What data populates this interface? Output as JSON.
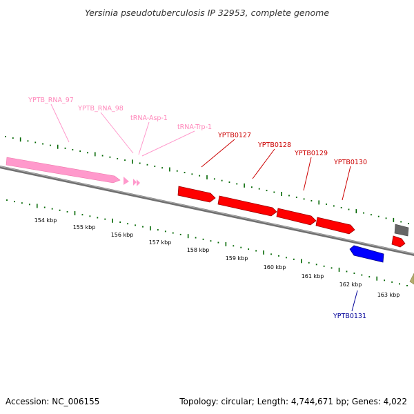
{
  "title": "Yersinia pseudotuberculosis IP 32953, complete genome",
  "footer": {
    "accession": "Accession: NC_006155",
    "summary": "Topology: circular; Length: 4,744,671 bp; Genes: 4,022"
  },
  "colors": {
    "rna": "#ff99cc",
    "rna_label": "#ff88bb",
    "gene_forward": "#ff0000",
    "gene_forward_label": "#cc0000",
    "gene_reverse": "#0000ff",
    "gene_reverse_label": "#000099",
    "backbone": "#808080",
    "tick": "#006600"
  },
  "kbp_ticks": [
    "154 kbp",
    "155 kbp",
    "156 kbp",
    "157 kbp",
    "158 kbp",
    "159 kbp",
    "160 kbp",
    "161 kbp",
    "162 kbp",
    "163 kbp"
  ],
  "features": {
    "rna": [
      {
        "name": "YPTB_RNA_97"
      },
      {
        "name": "YPTB_RNA_98"
      },
      {
        "name": "tRNA-Asp-1"
      },
      {
        "name": "tRNA-Trp-1"
      }
    ],
    "genes_forward": [
      {
        "name": "YPTB0127"
      },
      {
        "name": "YPTB0128"
      },
      {
        "name": "YPTB0129"
      },
      {
        "name": "YPTB0130"
      }
    ],
    "genes_reverse": [
      {
        "name": "YPTB0131"
      }
    ]
  }
}
